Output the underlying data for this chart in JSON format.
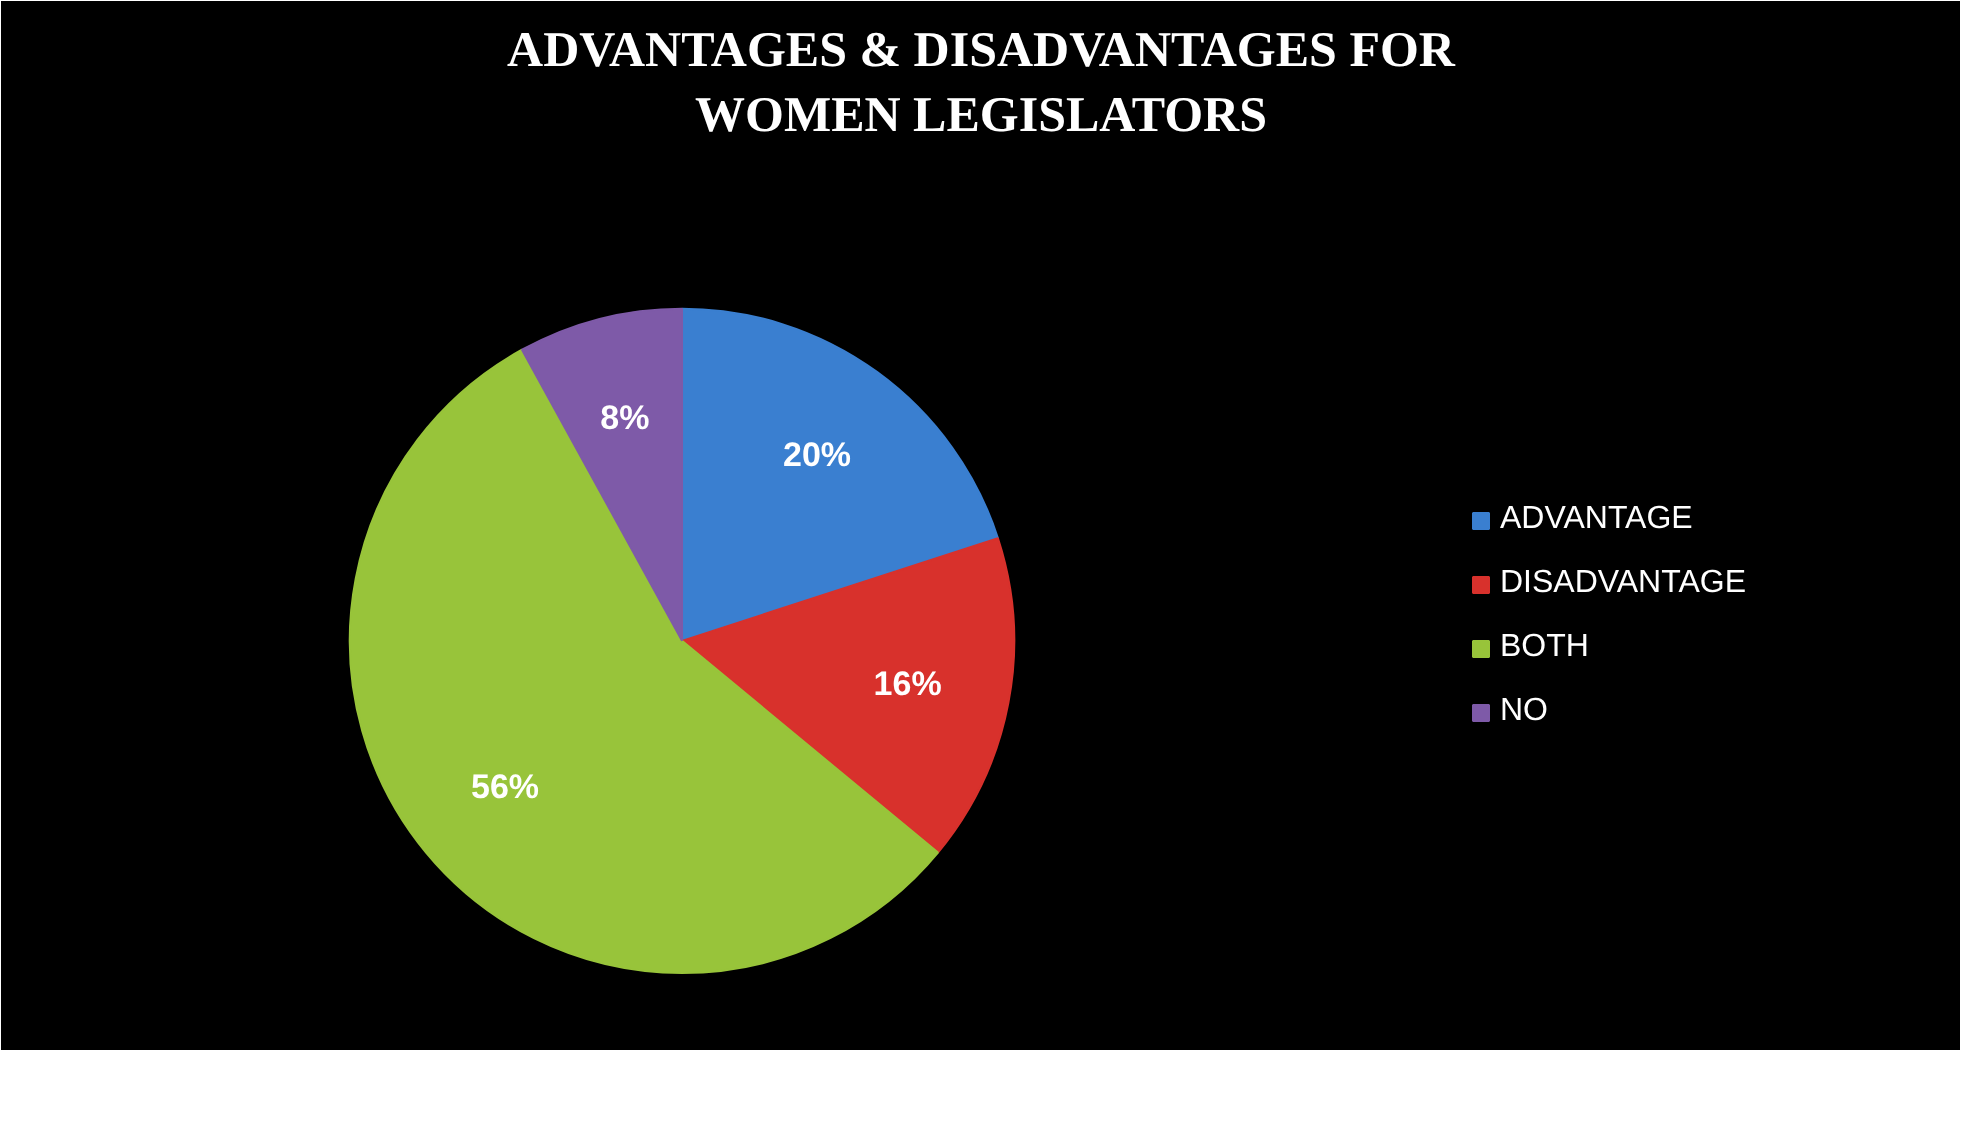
{
  "chart_data": {
    "type": "pie",
    "title": "ADVANTAGES & DISADVANTAGES FOR\nWOMEN LEGISLATORS",
    "categories": [
      "ADVANTAGE",
      "DISADVANTAGE",
      "BOTH",
      "NO"
    ],
    "values": [
      20,
      16,
      56,
      8
    ],
    "colors": [
      "#3a7fd0",
      "#d8312c",
      "#98c43a",
      "#7e5aa8"
    ],
    "value_labels": [
      "20%",
      "16%",
      "56%",
      "8%"
    ],
    "legend": "right"
  }
}
